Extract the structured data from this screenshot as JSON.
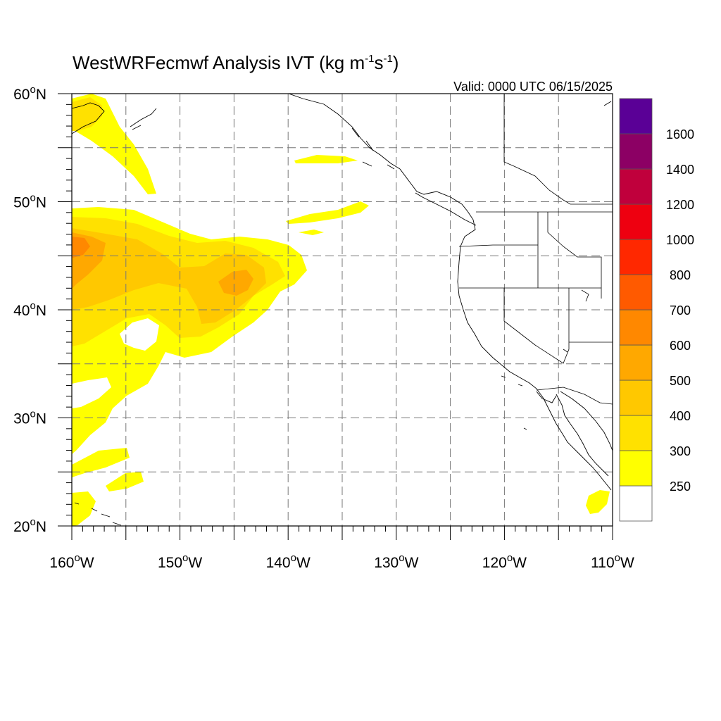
{
  "title": {
    "main": "WestWRFecmwf Analysis IVT (kg m",
    "sup1": "-1",
    "mid": "s",
    "sup2": "-1",
    "end": ")"
  },
  "valid_time": "Valid: 0000 UTC 06/15/2025",
  "map": {
    "lon_range": [
      -160,
      -110
    ],
    "lat_range": [
      20,
      60
    ],
    "grid_lon_step": 5,
    "grid_lat_step": 5,
    "grid_style": "dashed",
    "lat_ticks": [
      {
        "value": 60,
        "deg": "60",
        "hemi": "N"
      },
      {
        "value": 50,
        "deg": "50",
        "hemi": "N"
      },
      {
        "value": 40,
        "deg": "40",
        "hemi": "N"
      },
      {
        "value": 30,
        "deg": "30",
        "hemi": "N"
      },
      {
        "value": 20,
        "deg": "20",
        "hemi": "N"
      }
    ],
    "lon_ticks": [
      {
        "value": -160,
        "deg": "160",
        "hemi": "W"
      },
      {
        "value": -150,
        "deg": "150",
        "hemi": "W"
      },
      {
        "value": -140,
        "deg": "140",
        "hemi": "W"
      },
      {
        "value": -130,
        "deg": "130",
        "hemi": "W"
      },
      {
        "value": -120,
        "deg": "120",
        "hemi": "W"
      },
      {
        "value": -110,
        "deg": "110",
        "hemi": "W"
      }
    ]
  },
  "colorbar": {
    "levels": [
      "250",
      "300",
      "400",
      "500",
      "600",
      "700",
      "800",
      "1000",
      "1200",
      "1400",
      "1600"
    ],
    "colors": [
      "#ffffff",
      "#ffff00",
      "#ffe100",
      "#ffc800",
      "#ffa800",
      "#ff8800",
      "#ff5a00",
      "#ff2800",
      "#ee0010",
      "#c0003c",
      "#8c0064",
      "#5a0096"
    ]
  }
}
